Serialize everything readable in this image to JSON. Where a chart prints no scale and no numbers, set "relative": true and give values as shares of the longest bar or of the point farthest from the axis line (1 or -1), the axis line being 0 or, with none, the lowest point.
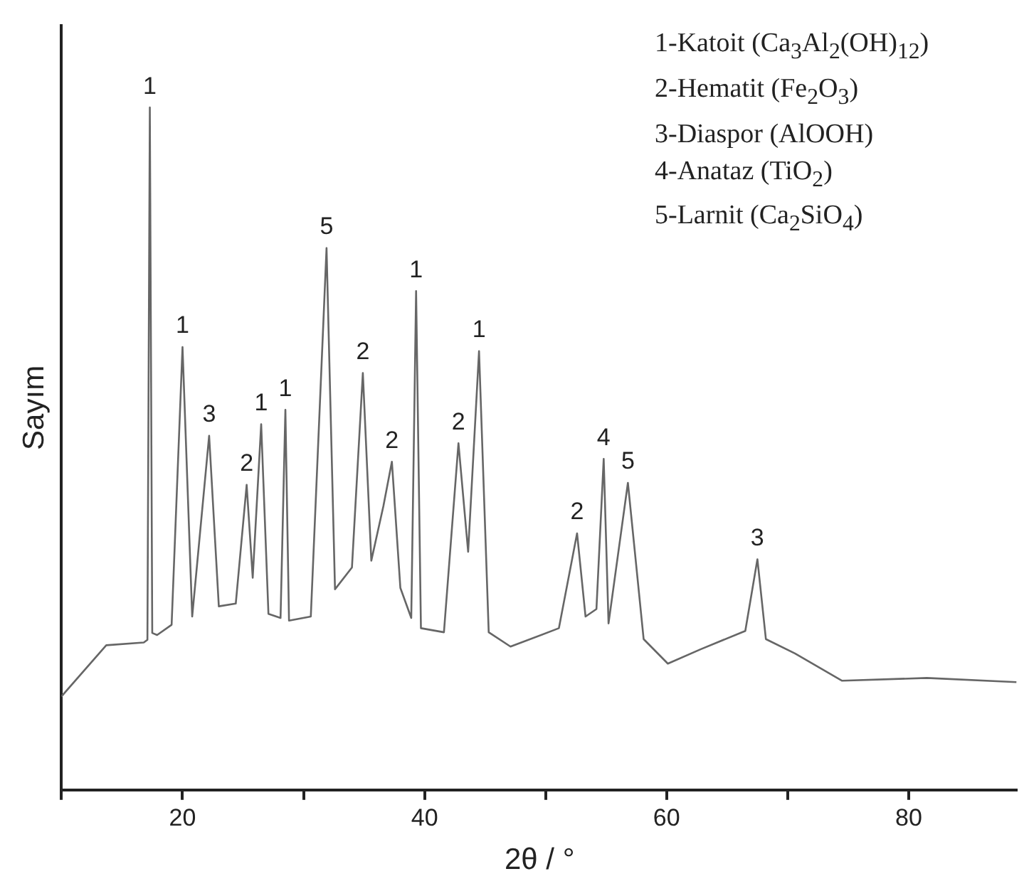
{
  "chart_data": {
    "type": "line",
    "relative": true,
    "xlabel": "2θ / °",
    "ylabel": "Sayım",
    "xlim": [
      10,
      89
    ],
    "xticks": [
      {
        "value": 10,
        "label": null
      },
      20,
      {
        "value": 30,
        "label": null
      },
      40,
      {
        "value": 50,
        "label": null
      },
      60,
      {
        "value": 70,
        "label": null
      },
      80
    ],
    "grid": false,
    "legend": false,
    "marker": "none",
    "line_style": "solid",
    "series": [
      {
        "color": "#666666",
        "x": [
          10,
          13.7,
          16.8,
          17.1,
          17.3,
          17.5,
          17.9,
          19.1,
          20.0,
          20.8,
          22.2,
          23.0,
          24.4,
          25.3,
          25.8,
          26.5,
          27.1,
          28.1,
          28.5,
          28.8,
          30.6,
          31.9,
          32.6,
          34.0,
          34.9,
          35.6,
          36.6,
          37.3,
          38.0,
          38.9,
          39.3,
          39.7,
          41.6,
          42.8,
          43.6,
          44.5,
          45.3,
          47.1,
          51.1,
          52.6,
          53.3,
          54.2,
          54.8,
          55.2,
          56.8,
          58.1,
          60.1,
          62.8,
          66.5,
          67.5,
          68.2,
          70.6,
          74.5,
          81.5,
          88.9
        ],
        "values": [
          0.137,
          0.212,
          0.216,
          0.22,
          1.0,
          0.23,
          0.227,
          0.242,
          0.649,
          0.254,
          0.519,
          0.269,
          0.273,
          0.447,
          0.311,
          0.536,
          0.258,
          0.252,
          0.557,
          0.248,
          0.254,
          0.794,
          0.294,
          0.326,
          0.611,
          0.336,
          0.416,
          0.481,
          0.296,
          0.252,
          0.731,
          0.237,
          0.231,
          0.508,
          0.349,
          0.643,
          0.231,
          0.21,
          0.237,
          0.376,
          0.254,
          0.265,
          0.485,
          0.244,
          0.45,
          0.221,
          0.185,
          0.206,
          0.233,
          0.338,
          0.221,
          0.2,
          0.16,
          0.164,
          0.158
        ]
      }
    ],
    "annotations": [
      "1-Katoit (Ca$_{3}$Al$_{2}$(OH)$_{12}$)",
      "2-Hematit (Fe$_{2}$O$_{3}$)",
      "3-Diaspor (AlOOH)",
      "4-Anataz (TiO$_{2}$)",
      "5-Larnit (Ca$_{2}$SiO$_{4}$)",
      {
        "text": "1",
        "x": 17.3,
        "y": 1.0
      },
      {
        "text": "1",
        "x": 20.0,
        "y": 0.649
      },
      {
        "text": "3",
        "x": 22.2,
        "y": 0.519
      },
      {
        "text": "2",
        "x": 25.3,
        "y": 0.447
      },
      {
        "text": "1",
        "x": 26.5,
        "y": 0.536
      },
      {
        "text": "1",
        "x": 28.5,
        "y": 0.557
      },
      {
        "text": "5",
        "x": 31.9,
        "y": 0.794
      },
      {
        "text": "2",
        "x": 34.9,
        "y": 0.611
      },
      {
        "text": "2",
        "x": 37.3,
        "y": 0.481
      },
      {
        "text": "1",
        "x": 39.3,
        "y": 0.731
      },
      {
        "text": "2",
        "x": 42.8,
        "y": 0.508
      },
      {
        "text": "1",
        "x": 44.5,
        "y": 0.643
      },
      {
        "text": "2",
        "x": 52.6,
        "y": 0.376
      },
      {
        "text": "4",
        "x": 54.8,
        "y": 0.485
      },
      {
        "text": "5",
        "x": 56.8,
        "y": 0.45
      },
      {
        "text": "3",
        "x": 67.5,
        "y": 0.338
      }
    ]
  }
}
